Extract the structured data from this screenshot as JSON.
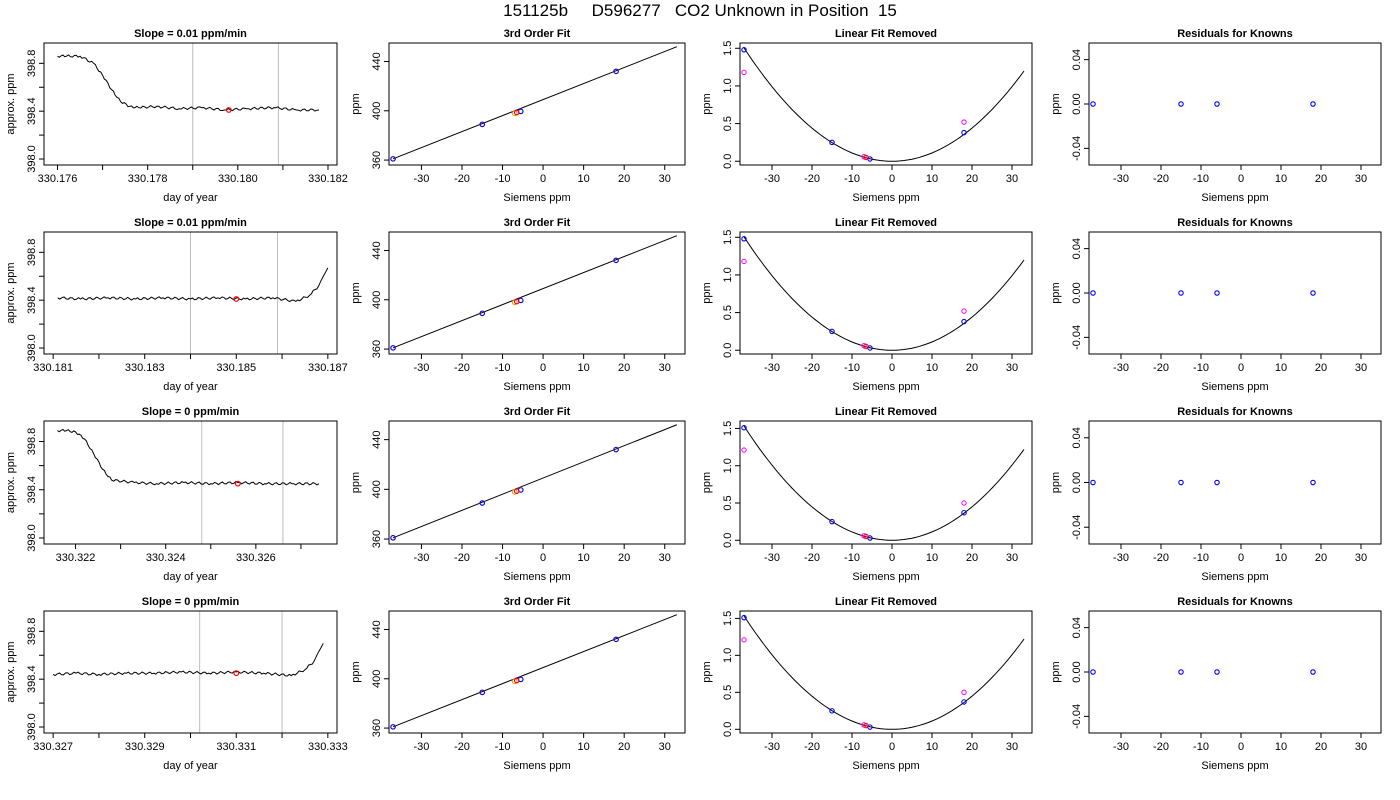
{
  "page_title": "151125b     D596277   CO2 Unknown in Position  15",
  "colors": {
    "line": "#000000",
    "grid": "#bebebe",
    "blue": "#0000ff",
    "red": "#ff0000",
    "magenta": "#ff00ff",
    "orange": "#ff8c00"
  },
  "chart_data": [
    {
      "type": "line",
      "title": "Slope =  0.01  ppm/min",
      "xlabel": "day of year",
      "ylabel": "approx. ppm",
      "xlim": [
        330.1757,
        330.1822
      ],
      "ylim": [
        397.95,
        398.97
      ],
      "xticks": [
        330.176,
        330.178,
        330.18,
        330.182
      ],
      "xtick_labels": [
        "330.176",
        "330.178",
        "330.180",
        "330.182"
      ],
      "yticks": [
        398.0,
        398.4,
        398.8
      ],
      "ytick_labels": [
        "398.0",
        "398.4",
        "398.8"
      ],
      "vlines": [
        330.179,
        330.1809
      ],
      "x": [
        330.176,
        330.1762,
        330.1765,
        330.1768,
        330.177,
        330.1772,
        330.1774,
        330.1776,
        330.1778,
        330.1782,
        330.1787,
        330.1792,
        330.1797,
        330.1802,
        330.1808,
        330.1813,
        330.1818
      ],
      "y": [
        398.86,
        398.86,
        398.86,
        398.8,
        398.7,
        398.58,
        398.48,
        398.44,
        398.43,
        398.44,
        398.42,
        398.43,
        398.41,
        398.42,
        398.43,
        398.41,
        398.41
      ],
      "highlight": {
        "x": 330.1798,
        "y": 398.41
      }
    },
    {
      "type": "scatter",
      "title": "3rd Order Fit",
      "xlabel": "Siemens ppm",
      "ylabel": "ppm",
      "xlim": [
        -38,
        35
      ],
      "ylim": [
        356,
        455
      ],
      "xticks": [
        -30,
        -20,
        -10,
        0,
        10,
        20,
        30
      ],
      "xtick_labels": [
        "-30",
        "-20",
        "-10",
        "0",
        "10",
        "20",
        "30"
      ],
      "yticks": [
        360,
        400,
        440
      ],
      "ytick_labels": [
        "360",
        "400",
        "440"
      ],
      "line": [
        [
          -37,
          361
        ],
        [
          33,
          452
        ]
      ],
      "points_blue": [
        [
          -37,
          361
        ],
        [
          -15,
          389
        ],
        [
          -5.5,
          399.5
        ],
        [
          18,
          432
        ]
      ],
      "points_open": [
        [
          -37,
          361
        ],
        [
          -15,
          389
        ],
        [
          -7,
          398
        ],
        [
          -5.5,
          399.5
        ],
        [
          18,
          432
        ]
      ],
      "point_red": [
        -6.5,
        398.5
      ]
    },
    {
      "type": "scatter",
      "title": "Linear Fit Removed",
      "xlabel": "Siemens ppm",
      "ylabel": "ppm",
      "xlim": [
        -38,
        35
      ],
      "ylim": [
        -0.05,
        1.57
      ],
      "xticks": [
        -30,
        -20,
        -10,
        0,
        10,
        20,
        30
      ],
      "xtick_labels": [
        "-30",
        "-20",
        "-10",
        "0",
        "10",
        "20",
        "30"
      ],
      "yticks": [
        0,
        0.5,
        1,
        1.5
      ],
      "ytick_labels": [
        "0.0",
        "0.5",
        "1.0",
        "1.5"
      ],
      "curve_coef": 0.0011,
      "curve_x": [
        -37,
        33
      ],
      "points_blue": [
        [
          -37,
          1.48
        ],
        [
          -15,
          0.25
        ],
        [
          -5.5,
          0.03
        ],
        [
          18,
          0.38
        ]
      ],
      "points_magenta": [
        [
          -37,
          1.18
        ],
        [
          -7,
          0.06
        ],
        [
          18,
          0.52
        ]
      ],
      "point_red": [
        -6.5,
        0.05
      ]
    },
    {
      "type": "scatter",
      "title": "Residuals for Knowns",
      "xlabel": "Siemens ppm",
      "ylabel": "ppm",
      "xlim": [
        -38,
        35
      ],
      "ylim": [
        -0.055,
        0.055
      ],
      "xticks": [
        -30,
        -20,
        -10,
        0,
        10,
        20,
        30
      ],
      "xtick_labels": [
        "-30",
        "-20",
        "-10",
        "0",
        "10",
        "20",
        "30"
      ],
      "yticks": [
        -0.04,
        0,
        0.04
      ],
      "ytick_labels": [
        "-0.04",
        "0.00",
        "0.04"
      ],
      "points_blue": [
        [
          -37,
          0
        ],
        [
          -15,
          0
        ],
        [
          -6,
          0
        ],
        [
          18,
          0
        ]
      ]
    },
    {
      "type": "line",
      "title": "Slope =  0.01  ppm/min",
      "xlabel": "day of year",
      "ylabel": "approx. ppm",
      "xlim": [
        330.1808,
        330.1872
      ],
      "ylim": [
        397.95,
        398.97
      ],
      "xticks": [
        330.181,
        330.183,
        330.185,
        330.187
      ],
      "xtick_labels": [
        "330.181",
        "330.183",
        "330.185",
        "330.187"
      ],
      "yticks": [
        398.0,
        398.4,
        398.8
      ],
      "ytick_labels": [
        "398.0",
        "398.4",
        "398.8"
      ],
      "vlines": [
        330.184,
        330.1859
      ],
      "x": [
        330.1811,
        330.1816,
        330.1822,
        330.1828,
        330.1834,
        330.184,
        330.1846,
        330.1852,
        330.1858,
        330.1863,
        330.1866,
        330.1868,
        330.1869,
        330.187
      ],
      "y": [
        398.42,
        398.41,
        398.42,
        398.41,
        398.42,
        398.41,
        398.42,
        398.41,
        398.42,
        398.39,
        398.44,
        398.52,
        398.6,
        398.67
      ],
      "highlight": {
        "x": 330.185,
        "y": 398.41
      }
    },
    {
      "type": "scatter",
      "title": "3rd Order Fit",
      "xlabel": "Siemens ppm",
      "ylabel": "ppm",
      "xlim": [
        -38,
        35
      ],
      "ylim": [
        356,
        455
      ],
      "xticks": [
        -30,
        -20,
        -10,
        0,
        10,
        20,
        30
      ],
      "xtick_labels": [
        "-30",
        "-20",
        "-10",
        "0",
        "10",
        "20",
        "30"
      ],
      "yticks": [
        360,
        400,
        440
      ],
      "ytick_labels": [
        "360",
        "400",
        "440"
      ],
      "line": [
        [
          -37,
          361
        ],
        [
          33,
          452
        ]
      ],
      "points_blue": [
        [
          -37,
          361
        ],
        [
          -15,
          389
        ],
        [
          -5.5,
          399.5
        ],
        [
          18,
          432
        ]
      ],
      "points_open": [
        [
          -37,
          361
        ],
        [
          -15,
          389
        ],
        [
          -7,
          398
        ],
        [
          -5.5,
          399.5
        ],
        [
          18,
          432
        ]
      ],
      "point_red": [
        -6.5,
        398.5
      ]
    },
    {
      "type": "scatter",
      "title": "Linear Fit Removed",
      "xlabel": "Siemens ppm",
      "ylabel": "ppm",
      "xlim": [
        -38,
        35
      ],
      "ylim": [
        -0.05,
        1.57
      ],
      "xticks": [
        -30,
        -20,
        -10,
        0,
        10,
        20,
        30
      ],
      "xtick_labels": [
        "-30",
        "-20",
        "-10",
        "0",
        "10",
        "20",
        "30"
      ],
      "yticks": [
        0,
        0.5,
        1,
        1.5
      ],
      "ytick_labels": [
        "0.0",
        "0.5",
        "1.0",
        "1.5"
      ],
      "curve_coef": 0.0011,
      "curve_x": [
        -37,
        33
      ],
      "points_blue": [
        [
          -37,
          1.48
        ],
        [
          -15,
          0.25
        ],
        [
          -5.5,
          0.03
        ],
        [
          18,
          0.38
        ]
      ],
      "points_magenta": [
        [
          -37,
          1.18
        ],
        [
          -7,
          0.06
        ],
        [
          18,
          0.52
        ]
      ],
      "point_red": [
        -6.5,
        0.05
      ]
    },
    {
      "type": "scatter",
      "title": "Residuals for Knowns",
      "xlabel": "Siemens ppm",
      "ylabel": "ppm",
      "xlim": [
        -38,
        35
      ],
      "ylim": [
        -0.055,
        0.055
      ],
      "xticks": [
        -30,
        -20,
        -10,
        0,
        10,
        20,
        30
      ],
      "xtick_labels": [
        "-30",
        "-20",
        "-10",
        "0",
        "10",
        "20",
        "30"
      ],
      "yticks": [
        -0.04,
        0,
        0.04
      ],
      "ytick_labels": [
        "-0.04",
        "0.00",
        "0.04"
      ],
      "points_blue": [
        [
          -37,
          0
        ],
        [
          -15,
          0
        ],
        [
          -6,
          0
        ],
        [
          18,
          0
        ]
      ]
    },
    {
      "type": "line",
      "title": "Slope =  0  ppm/min",
      "xlabel": "day of year",
      "ylabel": "approx. ppm",
      "xlim": [
        330.3213,
        330.3278
      ],
      "ylim": [
        397.95,
        398.97
      ],
      "xticks": [
        330.322,
        330.324,
        330.326
      ],
      "xtick_labels": [
        "330.322",
        "330.324",
        "330.326"
      ],
      "yticks": [
        398.0,
        398.4,
        398.8
      ],
      "ytick_labels": [
        "398.0",
        "398.4",
        "398.8"
      ],
      "vlines": [
        330.3248,
        330.3266
      ],
      "x": [
        330.3216,
        330.3218,
        330.322,
        330.3222,
        330.3224,
        330.3226,
        330.3228,
        330.3233,
        330.3238,
        330.3244,
        330.325,
        330.3256,
        330.3262,
        330.3268,
        330.3274
      ],
      "y": [
        398.89,
        398.89,
        398.88,
        398.82,
        398.7,
        398.57,
        398.48,
        398.46,
        398.45,
        398.46,
        398.45,
        398.46,
        398.45,
        398.45,
        398.45
      ],
      "highlight": {
        "x": 330.3256,
        "y": 398.45
      }
    },
    {
      "type": "scatter",
      "title": "3rd Order Fit",
      "xlabel": "Siemens ppm",
      "ylabel": "ppm",
      "xlim": [
        -38,
        35
      ],
      "ylim": [
        356,
        455
      ],
      "xticks": [
        -30,
        -20,
        -10,
        0,
        10,
        20,
        30
      ],
      "xtick_labels": [
        "-30",
        "-20",
        "-10",
        "0",
        "10",
        "20",
        "30"
      ],
      "yticks": [
        360,
        400,
        440
      ],
      "ytick_labels": [
        "360",
        "400",
        "440"
      ],
      "line": [
        [
          -37,
          361
        ],
        [
          33,
          452
        ]
      ],
      "points_blue": [
        [
          -37,
          361
        ],
        [
          -15,
          389
        ],
        [
          -5.5,
          399.5
        ],
        [
          18,
          432
        ]
      ],
      "points_open": [
        [
          -37,
          361
        ],
        [
          -15,
          389
        ],
        [
          -7,
          398
        ],
        [
          -5.5,
          399.5
        ],
        [
          18,
          432
        ]
      ],
      "point_red": [
        -6.5,
        398.5
      ]
    },
    {
      "type": "scatter",
      "title": "Linear Fit Removed",
      "xlabel": "Siemens ppm",
      "ylabel": "ppm",
      "xlim": [
        -38,
        35
      ],
      "ylim": [
        -0.05,
        1.6
      ],
      "xticks": [
        -30,
        -20,
        -10,
        0,
        10,
        20,
        30
      ],
      "xtick_labels": [
        "-30",
        "-20",
        "-10",
        "0",
        "10",
        "20",
        "30"
      ],
      "yticks": [
        0,
        0.5,
        1,
        1.5
      ],
      "ytick_labels": [
        "0.0",
        "0.5",
        "1.0",
        "1.5"
      ],
      "curve_coef": 0.00112,
      "curve_x": [
        -37,
        33
      ],
      "points_blue": [
        [
          -37,
          1.51
        ],
        [
          -15,
          0.25
        ],
        [
          -5.5,
          0.03
        ],
        [
          18,
          0.37
        ]
      ],
      "points_magenta": [
        [
          -37,
          1.21
        ],
        [
          -7,
          0.06
        ],
        [
          18,
          0.5
        ]
      ],
      "point_red": [
        -6.5,
        0.05
      ]
    },
    {
      "type": "scatter",
      "title": "Residuals for Knowns",
      "xlabel": "Siemens ppm",
      "ylabel": "ppm",
      "xlim": [
        -38,
        35
      ],
      "ylim": [
        -0.055,
        0.055
      ],
      "xticks": [
        -30,
        -20,
        -10,
        0,
        10,
        20,
        30
      ],
      "xtick_labels": [
        "-30",
        "-20",
        "-10",
        "0",
        "10",
        "20",
        "30"
      ],
      "yticks": [
        -0.04,
        0,
        0.04
      ],
      "ytick_labels": [
        "-0.04",
        "0.00",
        "0.04"
      ],
      "points_blue": [
        [
          -37,
          0
        ],
        [
          -15,
          0
        ],
        [
          -6,
          0
        ],
        [
          18,
          0
        ]
      ]
    },
    {
      "type": "line",
      "title": "Slope =  0  ppm/min",
      "xlabel": "day of year",
      "ylabel": "approx. ppm",
      "xlim": [
        330.3268,
        330.3332
      ],
      "ylim": [
        397.95,
        398.97
      ],
      "xticks": [
        330.327,
        330.329,
        330.331,
        330.333
      ],
      "xtick_labels": [
        "330.327",
        "330.329",
        "330.331",
        "330.333"
      ],
      "yticks": [
        398.0,
        398.4,
        398.8
      ],
      "ytick_labels": [
        "398.0",
        "398.4",
        "398.8"
      ],
      "vlines": [
        330.3302,
        330.332
      ],
      "x": [
        330.327,
        330.3275,
        330.328,
        330.3286,
        330.3292,
        330.3298,
        330.3304,
        330.331,
        330.3316,
        330.3322,
        330.3325,
        330.3327,
        330.3328,
        330.3329
      ],
      "y": [
        398.44,
        398.45,
        398.44,
        398.45,
        398.45,
        398.46,
        398.45,
        398.46,
        398.45,
        398.43,
        398.48,
        398.55,
        398.63,
        398.7
      ],
      "highlight": {
        "x": 330.331,
        "y": 398.45
      }
    },
    {
      "type": "scatter",
      "title": "3rd Order Fit",
      "xlabel": "Siemens ppm",
      "ylabel": "ppm",
      "xlim": [
        -38,
        35
      ],
      "ylim": [
        356,
        455
      ],
      "xticks": [
        -30,
        -20,
        -10,
        0,
        10,
        20,
        30
      ],
      "xtick_labels": [
        "-30",
        "-20",
        "-10",
        "0",
        "10",
        "20",
        "30"
      ],
      "yticks": [
        360,
        400,
        440
      ],
      "ytick_labels": [
        "360",
        "400",
        "440"
      ],
      "line": [
        [
          -37,
          361
        ],
        [
          33,
          452
        ]
      ],
      "points_blue": [
        [
          -37,
          361
        ],
        [
          -15,
          389
        ],
        [
          -5.5,
          399.5
        ],
        [
          18,
          432
        ]
      ],
      "points_open": [
        [
          -37,
          361
        ],
        [
          -15,
          389
        ],
        [
          -7,
          398
        ],
        [
          -5.5,
          399.5
        ],
        [
          18,
          432
        ]
      ],
      "point_red": [
        -6.5,
        398.5
      ]
    },
    {
      "type": "scatter",
      "title": "Linear Fit Removed",
      "xlabel": "Siemens ppm",
      "ylabel": "ppm",
      "xlim": [
        -38,
        35
      ],
      "ylim": [
        -0.05,
        1.6
      ],
      "xticks": [
        -30,
        -20,
        -10,
        0,
        10,
        20,
        30
      ],
      "xtick_labels": [
        "-30",
        "-20",
        "-10",
        "0",
        "10",
        "20",
        "30"
      ],
      "yticks": [
        0,
        0.5,
        1,
        1.5
      ],
      "ytick_labels": [
        "0.0",
        "0.5",
        "1.0",
        "1.5"
      ],
      "curve_coef": 0.00112,
      "curve_x": [
        -37,
        33
      ],
      "points_blue": [
        [
          -37,
          1.51
        ],
        [
          -15,
          0.25
        ],
        [
          -5.5,
          0.03
        ],
        [
          18,
          0.37
        ]
      ],
      "points_magenta": [
        [
          -37,
          1.21
        ],
        [
          -7,
          0.06
        ],
        [
          18,
          0.5
        ]
      ],
      "point_red": [
        -6.5,
        0.05
      ]
    },
    {
      "type": "scatter",
      "title": "Residuals for Knowns",
      "xlabel": "Siemens ppm",
      "ylabel": "ppm",
      "xlim": [
        -38,
        35
      ],
      "ylim": [
        -0.055,
        0.055
      ],
      "xticks": [
        -30,
        -20,
        -10,
        0,
        10,
        20,
        30
      ],
      "xtick_labels": [
        "-30",
        "-20",
        "-10",
        "0",
        "10",
        "20",
        "30"
      ],
      "yticks": [
        -0.04,
        0,
        0.04
      ],
      "ytick_labels": [
        "-0.04",
        "0.00",
        "0.04"
      ],
      "points_blue": [
        [
          -37,
          0
        ],
        [
          -15,
          0
        ],
        [
          -6,
          0
        ],
        [
          18,
          0
        ]
      ]
    }
  ]
}
